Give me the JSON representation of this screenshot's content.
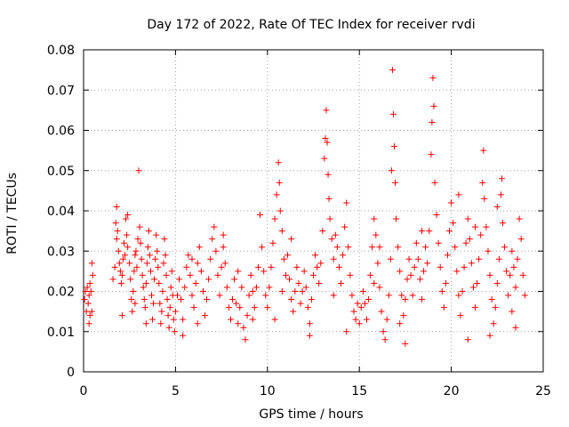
{
  "chart_data": {
    "type": "scatter",
    "title": "Day 172 of 2022, Rate Of TEC Index for receiver rvdi",
    "xlabel": "GPS time / hours",
    "ylabel": "ROTI / TECUs",
    "xlim": [
      0,
      25
    ],
    "ylim": [
      0,
      0.08
    ],
    "x_ticks": [
      0,
      5,
      10,
      15,
      20,
      25
    ],
    "y_ticks": [
      0,
      0.01,
      0.02,
      0.03,
      0.04,
      0.05,
      0.06,
      0.07,
      0.08
    ],
    "x_tick_labels": [
      "0",
      "5",
      "10",
      "15",
      "20",
      "25"
    ],
    "y_tick_labels": [
      "0",
      "0.01",
      "0.02",
      "0.03",
      "0.04",
      "0.05",
      "0.06",
      "0.07",
      "0.08"
    ],
    "grid": true,
    "legend": "none",
    "marker": "plus",
    "color": "#ff0000",
    "series": [
      {
        "points": [
          [
            0.05,
            0.018
          ],
          [
            0.1,
            0.02
          ],
          [
            0.15,
            0.015
          ],
          [
            0.2,
            0.021
          ],
          [
            0.25,
            0.017
          ],
          [
            0.3,
            0.019
          ],
          [
            0.35,
            0.014
          ],
          [
            0.4,
            0.02
          ],
          [
            0.45,
            0.027
          ],
          [
            0.5,
            0.024
          ],
          [
            0.3,
            0.012
          ],
          [
            0.35,
            0.022
          ],
          [
            0.45,
            0.015
          ],
          [
            1.6,
            0.023
          ],
          [
            1.7,
            0.026
          ],
          [
            1.75,
            0.037
          ],
          [
            1.8,
            0.041
          ],
          [
            1.85,
            0.035
          ],
          [
            1.9,
            0.03
          ],
          [
            1.95,
            0.027
          ],
          [
            2.0,
            0.025
          ],
          [
            2.05,
            0.022
          ],
          [
            2.1,
            0.024
          ],
          [
            2.15,
            0.028
          ],
          [
            2.2,
            0.032
          ],
          [
            2.25,
            0.029
          ],
          [
            2.3,
            0.038
          ],
          [
            2.35,
            0.034
          ],
          [
            2.4,
            0.031
          ],
          [
            2.5,
            0.027
          ],
          [
            2.55,
            0.023
          ],
          [
            2.6,
            0.018
          ],
          [
            2.65,
            0.015
          ],
          [
            2.7,
            0.02
          ],
          [
            2.75,
            0.025
          ],
          [
            2.8,
            0.029
          ],
          [
            2.85,
            0.03
          ],
          [
            2.9,
            0.026
          ],
          [
            2.95,
            0.033
          ],
          [
            3.0,
            0.05
          ],
          [
            3.05,
            0.036
          ],
          [
            3.1,
            0.032
          ],
          [
            3.15,
            0.028
          ],
          [
            3.2,
            0.024
          ],
          [
            3.25,
            0.021
          ],
          [
            3.3,
            0.018
          ],
          [
            3.35,
            0.016
          ],
          [
            3.4,
            0.022
          ],
          [
            3.45,
            0.027
          ],
          [
            3.5,
            0.031
          ],
          [
            3.55,
            0.035
          ],
          [
            3.6,
            0.029
          ],
          [
            3.65,
            0.025
          ],
          [
            3.7,
            0.019
          ],
          [
            3.75,
            0.013
          ],
          [
            3.8,
            0.017
          ],
          [
            3.85,
            0.023
          ],
          [
            3.9,
            0.028
          ],
          [
            3.95,
            0.034
          ],
          [
            4.0,
            0.03
          ],
          [
            4.05,
            0.026
          ],
          [
            4.1,
            0.022
          ],
          [
            4.15,
            0.017
          ],
          [
            4.2,
            0.012
          ],
          [
            4.25,
            0.015
          ],
          [
            4.3,
            0.02
          ],
          [
            4.35,
            0.027
          ],
          [
            4.4,
            0.033
          ],
          [
            4.45,
            0.029
          ],
          [
            4.5,
            0.024
          ],
          [
            4.55,
            0.018
          ],
          [
            4.6,
            0.014
          ],
          [
            4.65,
            0.011
          ],
          [
            4.7,
            0.016
          ],
          [
            4.75,
            0.021
          ],
          [
            4.8,
            0.025
          ],
          [
            4.85,
            0.019
          ],
          [
            4.9,
            0.013
          ],
          [
            4.95,
            0.01
          ],
          [
            2.1,
            0.014
          ],
          [
            2.8,
            0.017
          ],
          [
            3.4,
            0.012
          ],
          [
            1.8,
            0.033
          ],
          [
            2.4,
            0.039
          ],
          [
            5.0,
            0.015
          ],
          [
            5.1,
            0.019
          ],
          [
            5.2,
            0.023
          ],
          [
            5.3,
            0.018
          ],
          [
            5.4,
            0.013
          ],
          [
            5.5,
            0.021
          ],
          [
            5.6,
            0.026
          ],
          [
            5.7,
            0.029
          ],
          [
            5.8,
            0.024
          ],
          [
            5.9,
            0.019
          ],
          [
            6.0,
            0.016
          ],
          [
            6.1,
            0.022
          ],
          [
            6.2,
            0.027
          ],
          [
            6.3,
            0.031
          ],
          [
            6.4,
            0.025
          ],
          [
            6.5,
            0.02
          ],
          [
            6.6,
            0.014
          ],
          [
            6.7,
            0.018
          ],
          [
            6.8,
            0.023
          ],
          [
            6.9,
            0.028
          ],
          [
            7.0,
            0.033
          ],
          [
            7.1,
            0.036
          ],
          [
            7.2,
            0.03
          ],
          [
            7.3,
            0.024
          ],
          [
            7.4,
            0.019
          ],
          [
            7.5,
            0.026
          ],
          [
            7.6,
            0.031
          ],
          [
            7.7,
            0.027
          ],
          [
            7.8,
            0.021
          ],
          [
            7.9,
            0.016
          ],
          [
            8.0,
            0.013
          ],
          [
            8.1,
            0.018
          ],
          [
            8.2,
            0.023
          ],
          [
            8.3,
            0.017
          ],
          [
            8.4,
            0.012
          ],
          [
            8.5,
            0.016
          ],
          [
            8.6,
            0.021
          ],
          [
            8.7,
            0.011
          ],
          [
            8.8,
            0.008
          ],
          [
            8.9,
            0.014
          ],
          [
            9.0,
            0.019
          ],
          [
            9.1,
            0.024
          ],
          [
            9.2,
            0.02
          ],
          [
            9.3,
            0.016
          ],
          [
            9.4,
            0.021
          ],
          [
            9.5,
            0.026
          ],
          [
            9.6,
            0.039
          ],
          [
            9.7,
            0.031
          ],
          [
            9.8,
            0.025
          ],
          [
            9.9,
            0.019
          ],
          [
            5.4,
            0.009
          ],
          [
            6.2,
            0.012
          ],
          [
            7.6,
            0.034
          ],
          [
            8.4,
            0.025
          ],
          [
            9.2,
            0.013
          ],
          [
            5.9,
            0.028
          ],
          [
            10.0,
            0.016
          ],
          [
            10.1,
            0.021
          ],
          [
            10.2,
            0.026
          ],
          [
            10.3,
            0.032
          ],
          [
            10.4,
            0.038
          ],
          [
            10.5,
            0.044
          ],
          [
            10.6,
            0.052
          ],
          [
            10.65,
            0.047
          ],
          [
            10.7,
            0.04
          ],
          [
            10.8,
            0.035
          ],
          [
            10.9,
            0.028
          ],
          [
            11.0,
            0.024
          ],
          [
            11.1,
            0.029
          ],
          [
            11.2,
            0.023
          ],
          [
            11.3,
            0.018
          ],
          [
            11.4,
            0.015
          ],
          [
            11.5,
            0.02
          ],
          [
            11.6,
            0.026
          ],
          [
            11.7,
            0.022
          ],
          [
            11.8,
            0.017
          ],
          [
            11.9,
            0.02
          ],
          [
            12.0,
            0.025
          ],
          [
            12.1,
            0.021
          ],
          [
            12.2,
            0.016
          ],
          [
            12.3,
            0.012
          ],
          [
            12.4,
            0.018
          ],
          [
            12.5,
            0.024
          ],
          [
            12.6,
            0.029
          ],
          [
            12.7,
            0.026
          ],
          [
            12.8,
            0.022
          ],
          [
            12.9,
            0.027
          ],
          [
            13.0,
            0.035
          ],
          [
            13.1,
            0.053
          ],
          [
            13.15,
            0.058
          ],
          [
            13.2,
            0.065
          ],
          [
            13.25,
            0.057
          ],
          [
            13.3,
            0.049
          ],
          [
            13.35,
            0.043
          ],
          [
            13.4,
            0.038
          ],
          [
            13.5,
            0.033
          ],
          [
            13.6,
            0.028
          ],
          [
            13.7,
            0.034
          ],
          [
            13.8,
            0.031
          ],
          [
            13.9,
            0.026
          ],
          [
            14.0,
            0.022
          ],
          [
            14.1,
            0.029
          ],
          [
            14.2,
            0.036
          ],
          [
            14.3,
            0.042
          ],
          [
            14.4,
            0.031
          ],
          [
            14.5,
            0.024
          ],
          [
            14.6,
            0.019
          ],
          [
            14.7,
            0.015
          ],
          [
            14.8,
            0.013
          ],
          [
            14.9,
            0.017
          ],
          [
            10.4,
            0.013
          ],
          [
            11.3,
            0.033
          ],
          [
            12.3,
            0.009
          ],
          [
            13.6,
            0.019
          ],
          [
            14.3,
            0.01
          ],
          [
            10.8,
            0.02
          ],
          [
            15.0,
            0.012
          ],
          [
            15.1,
            0.016
          ],
          [
            15.2,
            0.02
          ],
          [
            15.3,
            0.017
          ],
          [
            15.4,
            0.013
          ],
          [
            15.5,
            0.018
          ],
          [
            15.6,
            0.024
          ],
          [
            15.7,
            0.031
          ],
          [
            15.8,
            0.038
          ],
          [
            15.9,
            0.034
          ],
          [
            16.0,
            0.027
          ],
          [
            16.1,
            0.021
          ],
          [
            16.2,
            0.015
          ],
          [
            16.3,
            0.01
          ],
          [
            16.4,
            0.008
          ],
          [
            16.5,
            0.013
          ],
          [
            16.6,
            0.019
          ],
          [
            16.7,
            0.028
          ],
          [
            16.75,
            0.05
          ],
          [
            16.8,
            0.075
          ],
          [
            16.85,
            0.064
          ],
          [
            16.9,
            0.056
          ],
          [
            16.95,
            0.047
          ],
          [
            17.0,
            0.038
          ],
          [
            17.1,
            0.031
          ],
          [
            17.2,
            0.025
          ],
          [
            17.3,
            0.019
          ],
          [
            17.4,
            0.014
          ],
          [
            17.5,
            0.018
          ],
          [
            17.6,
            0.023
          ],
          [
            17.7,
            0.028
          ],
          [
            17.8,
            0.024
          ],
          [
            17.9,
            0.019
          ],
          [
            18.0,
            0.026
          ],
          [
            18.1,
            0.032
          ],
          [
            18.2,
            0.028
          ],
          [
            18.3,
            0.023
          ],
          [
            18.4,
            0.018
          ],
          [
            18.5,
            0.025
          ],
          [
            18.6,
            0.031
          ],
          [
            18.7,
            0.027
          ],
          [
            18.8,
            0.035
          ],
          [
            18.9,
            0.054
          ],
          [
            18.95,
            0.062
          ],
          [
            19.0,
            0.073
          ],
          [
            19.05,
            0.066
          ],
          [
            19.1,
            0.047
          ],
          [
            19.2,
            0.039
          ],
          [
            19.3,
            0.032
          ],
          [
            19.4,
            0.026
          ],
          [
            19.5,
            0.02
          ],
          [
            19.6,
            0.016
          ],
          [
            19.7,
            0.022
          ],
          [
            19.8,
            0.029
          ],
          [
            19.9,
            0.035
          ],
          [
            16.1,
            0.031
          ],
          [
            17.5,
            0.007
          ],
          [
            18.4,
            0.035
          ],
          [
            15.8,
            0.022
          ],
          [
            17.2,
            0.012
          ],
          [
            20.0,
            0.042
          ],
          [
            20.1,
            0.037
          ],
          [
            20.2,
            0.031
          ],
          [
            20.3,
            0.025
          ],
          [
            20.4,
            0.019
          ],
          [
            20.5,
            0.014
          ],
          [
            20.6,
            0.02
          ],
          [
            20.7,
            0.026
          ],
          [
            20.8,
            0.032
          ],
          [
            20.9,
            0.038
          ],
          [
            21.0,
            0.033
          ],
          [
            21.1,
            0.027
          ],
          [
            21.2,
            0.021
          ],
          [
            21.3,
            0.016
          ],
          [
            21.4,
            0.022
          ],
          [
            21.5,
            0.028
          ],
          [
            21.6,
            0.034
          ],
          [
            21.7,
            0.047
          ],
          [
            21.75,
            0.055
          ],
          [
            21.8,
            0.043
          ],
          [
            21.9,
            0.036
          ],
          [
            22.0,
            0.03
          ],
          [
            22.1,
            0.024
          ],
          [
            22.2,
            0.018
          ],
          [
            22.3,
            0.012
          ],
          [
            22.4,
            0.016
          ],
          [
            22.5,
            0.022
          ],
          [
            22.6,
            0.028
          ],
          [
            22.7,
            0.044
          ],
          [
            22.75,
            0.048
          ],
          [
            22.8,
            0.037
          ],
          [
            22.9,
            0.031
          ],
          [
            23.0,
            0.025
          ],
          [
            23.1,
            0.019
          ],
          [
            23.2,
            0.024
          ],
          [
            23.3,
            0.03
          ],
          [
            23.4,
            0.026
          ],
          [
            23.5,
            0.021
          ],
          [
            23.6,
            0.028
          ],
          [
            23.7,
            0.038
          ],
          [
            23.8,
            0.033
          ],
          [
            23.9,
            0.024
          ],
          [
            24.0,
            0.019
          ],
          [
            20.9,
            0.008
          ],
          [
            22.1,
            0.009
          ],
          [
            23.3,
            0.015
          ],
          [
            20.4,
            0.044
          ],
          [
            21.3,
            0.036
          ],
          [
            22.5,
            0.041
          ],
          [
            23.5,
            0.011
          ]
        ]
      }
    ]
  }
}
